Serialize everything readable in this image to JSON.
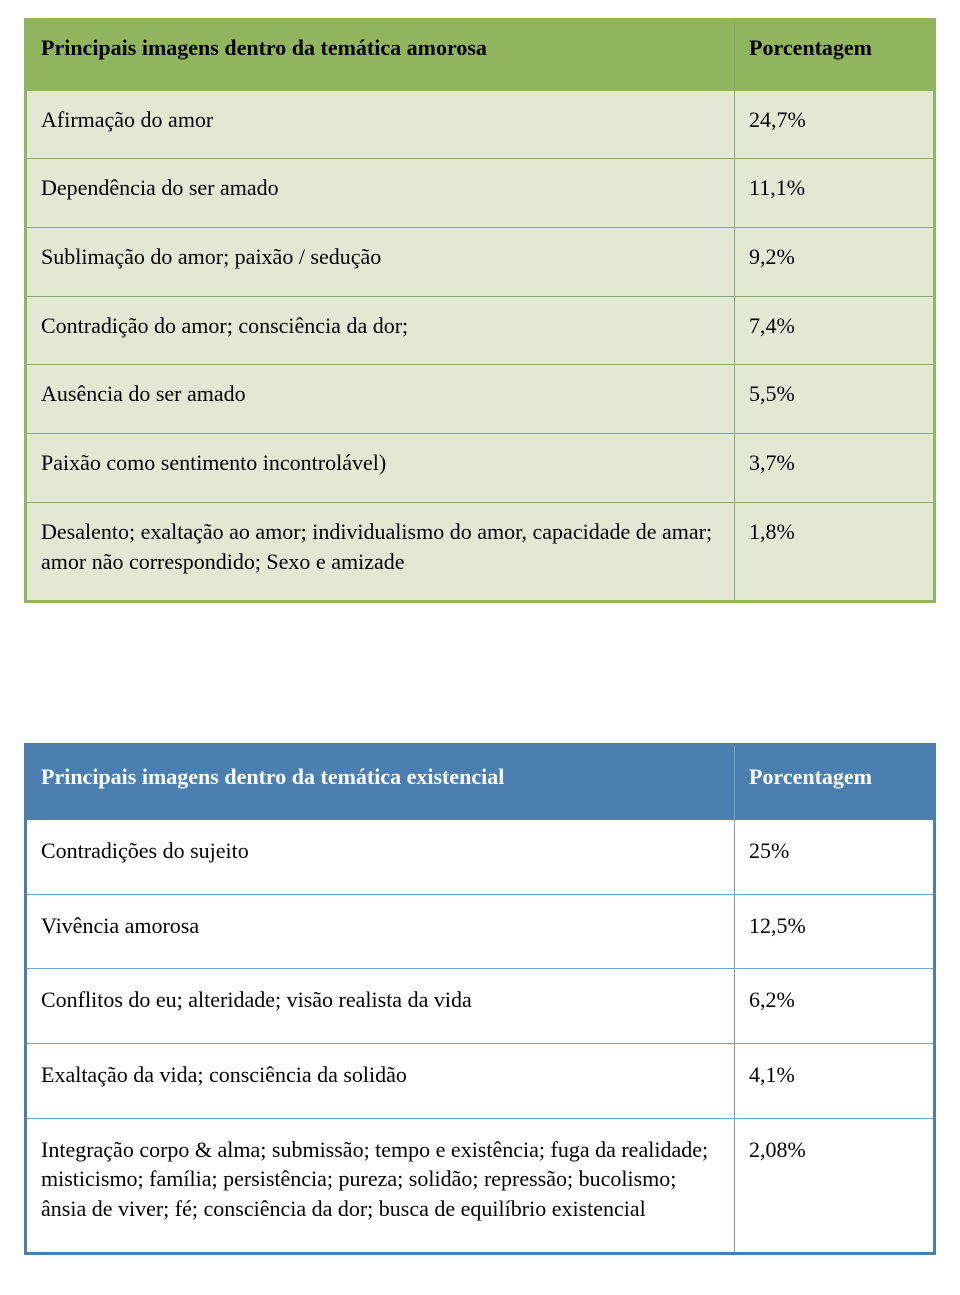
{
  "table1": {
    "header_left": "Principais imagens dentro da temática amorosa",
    "header_right": "Porcentagem",
    "header_bg": "#90b55e",
    "row_bg": "#e1e9d5",
    "border_color": "#90b55e",
    "inner_border_color": "#8aa86b",
    "font_family": "Times New Roman",
    "font_size_pt": 17,
    "rows": [
      {
        "label": "Afirmação do amor",
        "value": "24,7%"
      },
      {
        "label": "Dependência do ser amado",
        "value": "11,1%"
      },
      {
        "label": "Sublimação do amor; paixão / sedução",
        "value": "9,2%"
      },
      {
        "label": "Contradição do amor; consciência da dor;",
        "value": "7,4%"
      },
      {
        "label": "Ausência do ser amado",
        "value": "5,5%"
      },
      {
        "label": "Paixão como sentimento incontrolável)",
        "value": "3,7%"
      },
      {
        "label": "Desalento; exaltação ao amor; individualismo do amor, capacidade de amar; amor não correspondido; Sexo e amizade",
        "value": "1,8%"
      }
    ]
  },
  "table2": {
    "header_left": "Principais imagens dentro da temática existencial",
    "header_right": "Porcentagem",
    "header_bg": "#4b7fb0",
    "header_text_color": "#ffffff",
    "row_bg": "#ffffff",
    "border_color": "#4b7fb0",
    "inner_border_color": "#7aa3c9",
    "font_family": "Times New Roman",
    "font_size_pt": 17,
    "rows": [
      {
        "label": "Contradições do sujeito",
        "value": "25%"
      },
      {
        "label": "Vivência amorosa",
        "value": "12,5%"
      },
      {
        "label": "Conflitos do eu; alteridade; visão realista da vida",
        "value": "6,2%"
      },
      {
        "label": "Exaltação da vida; consciência da solidão",
        "value": "4,1%"
      },
      {
        "label": "Integração corpo & alma; submissão; tempo e existência; fuga da realidade; misticismo; família; persistência; pureza; solidão; repressão; bucolismo; ânsia de viver; fé; consciência da dor; busca de equilíbrio existencial",
        "value": "2,08%"
      }
    ]
  }
}
